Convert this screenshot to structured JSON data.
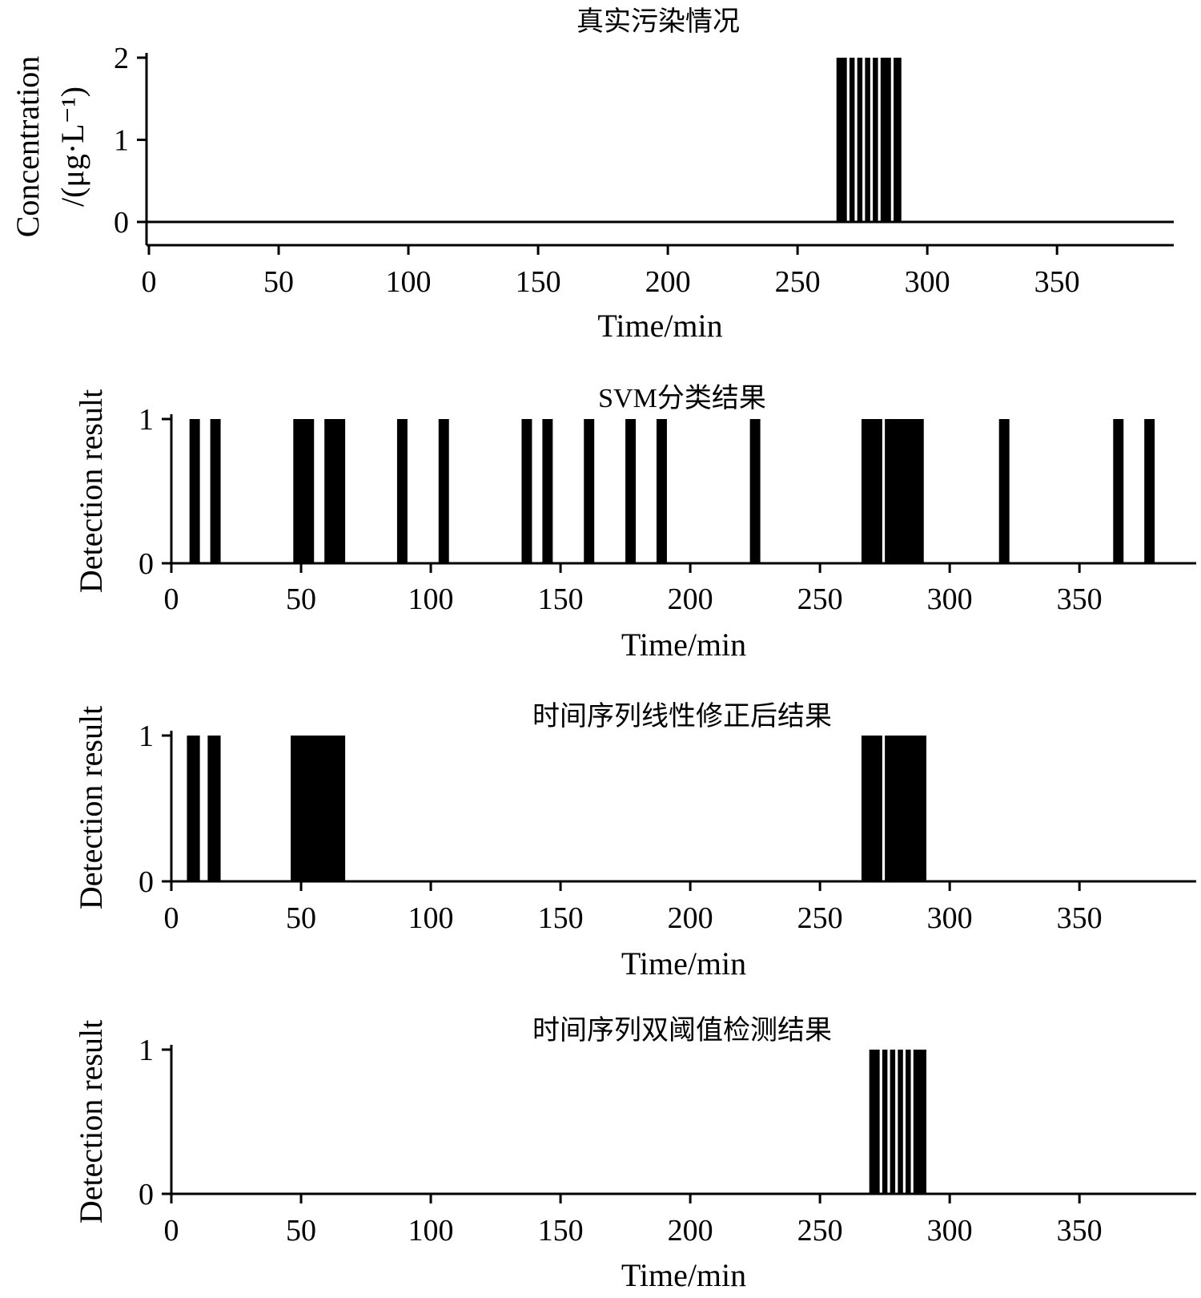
{
  "chart_data": [
    {
      "type": "bar",
      "title": "真实污染情况",
      "xlabel": "Time/min",
      "ylabel": [
        "Concentration",
        "/(μg·L⁻¹)"
      ],
      "xlim": [
        0,
        395
      ],
      "ylim": [
        -0.3,
        2.2
      ],
      "xticks": [
        "0",
        "50",
        "100",
        "150",
        "200",
        "250",
        "300",
        "350"
      ],
      "yticks": [
        "0",
        "1",
        "2"
      ],
      "baseline": 0,
      "bar_value": 2,
      "bars": [
        [
          265,
          269
        ],
        [
          270,
          272
        ],
        [
          273,
          275
        ],
        [
          276,
          278
        ],
        [
          279,
          281
        ],
        [
          282,
          286
        ],
        [
          287,
          290
        ]
      ],
      "grid": false
    },
    {
      "type": "bar",
      "title": "SVM分类结果",
      "xlabel": "Time/min",
      "ylabel": [
        "Detection result"
      ],
      "xlim": [
        0,
        395
      ],
      "ylim": [
        0,
        1
      ],
      "xticks": [
        "0",
        "50",
        "100",
        "150",
        "200",
        "250",
        "300",
        "350"
      ],
      "yticks": [
        "0",
        "1"
      ],
      "bar_value": 1,
      "bars": [
        [
          7,
          11
        ],
        [
          15,
          19
        ],
        [
          47,
          55
        ],
        [
          59,
          67
        ],
        [
          87,
          91
        ],
        [
          103,
          107
        ],
        [
          135,
          139
        ],
        [
          143,
          147
        ],
        [
          159,
          163
        ],
        [
          175,
          179
        ],
        [
          187,
          191
        ],
        [
          223,
          227
        ],
        [
          266,
          274
        ],
        [
          275,
          290
        ],
        [
          319,
          323
        ],
        [
          363,
          367
        ],
        [
          375,
          379
        ]
      ],
      "grid": false
    },
    {
      "type": "bar",
      "title": "时间序列线性修正后结果",
      "xlabel": "Time/min",
      "ylabel": [
        "Detection result"
      ],
      "xlim": [
        0,
        395
      ],
      "ylim": [
        0,
        1
      ],
      "xticks": [
        "0",
        "50",
        "100",
        "150",
        "200",
        "250",
        "300",
        "350"
      ],
      "yticks": [
        "0",
        "1"
      ],
      "bar_value": 1,
      "bars": [
        [
          6,
          11
        ],
        [
          14,
          19
        ],
        [
          46,
          67
        ],
        [
          266,
          274
        ],
        [
          275,
          291
        ]
      ],
      "grid": false
    },
    {
      "type": "bar",
      "title": "时间序列双阈值检测结果",
      "xlabel": "Time/min",
      "ylabel": [
        "Detection result"
      ],
      "xlim": [
        0,
        395
      ],
      "ylim": [
        0,
        1
      ],
      "xticks": [
        "0",
        "50",
        "100",
        "150",
        "200",
        "250",
        "300",
        "350"
      ],
      "yticks": [
        "0",
        "1"
      ],
      "bar_value": 1,
      "bars": [
        [
          269,
          273
        ],
        [
          274,
          276
        ],
        [
          277,
          279
        ],
        [
          280,
          282
        ],
        [
          283,
          285
        ],
        [
          286,
          291
        ]
      ],
      "grid": false
    }
  ]
}
